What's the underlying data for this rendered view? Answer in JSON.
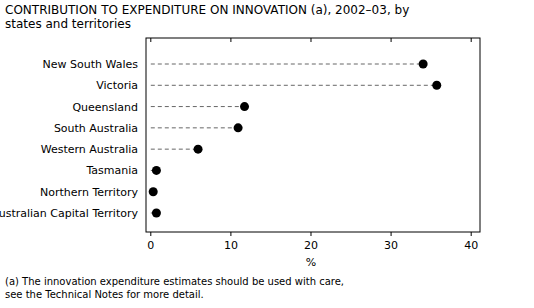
{
  "chart_data": {
    "type": "dot",
    "orientation": "horizontal",
    "title": "CONTRIBUTION TO EXPENDITURE ON INNOVATION (a), 2002–03, by states and territories",
    "categories": [
      "New South Wales",
      "Victoria",
      "Queensland",
      "South Australia",
      "Western Australia",
      "Tasmania",
      "Northern Territory",
      "Australian Capital Territory"
    ],
    "values": [
      34.0,
      35.7,
      11.7,
      10.9,
      5.9,
      0.7,
      0.3,
      0.7
    ],
    "color": "#000000",
    "line_style": "dashed",
    "marker": "circle",
    "xlabel": "%",
    "xlim": [
      -0.6,
      41.1
    ],
    "xticks": [
      0,
      10,
      20,
      30,
      40
    ],
    "grid": false,
    "annotations": [
      "(a) The innovation expenditure estimates should be used with care,",
      "see the Technical Notes for more detail."
    ]
  }
}
